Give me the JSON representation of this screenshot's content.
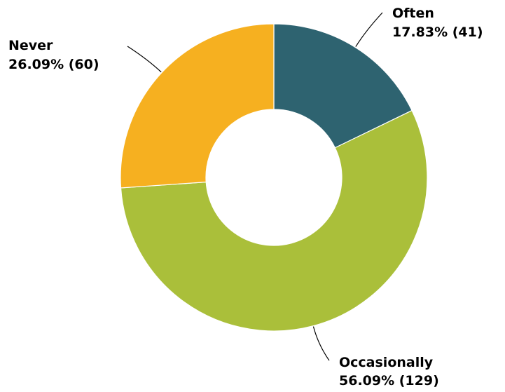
{
  "chart_data": {
    "type": "pie",
    "donut": true,
    "title": "",
    "slices": [
      {
        "label": "Often",
        "value": 41,
        "percent_label": "17.83% (41)",
        "color": "#2e6370"
      },
      {
        "label": "Occasionally",
        "value": 129,
        "percent_label": "56.09% (129)",
        "color": "#aabf3a"
      },
      {
        "label": "Never",
        "value": 60,
        "percent_label": "26.09% (60)",
        "color": "#f6b020"
      }
    ],
    "start_angle": "12 o'clock",
    "direction": "clockwise",
    "legend": "none"
  }
}
